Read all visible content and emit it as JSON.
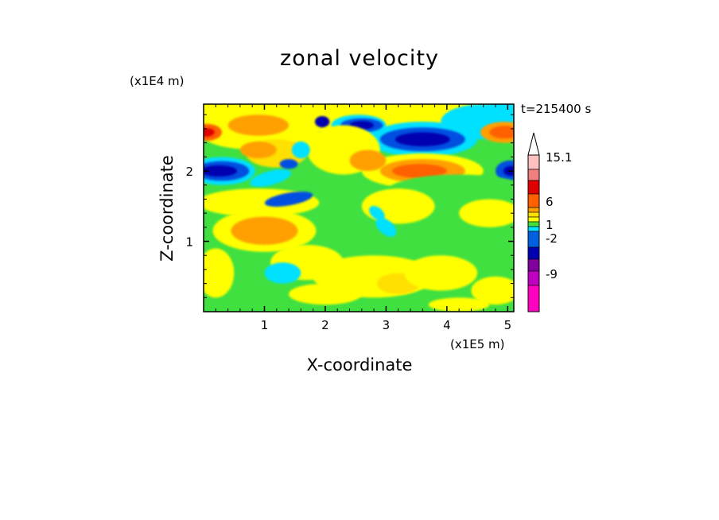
{
  "chart_data": {
    "type": "heatmap",
    "title": "zonal velocity",
    "xlabel": "X-coordinate",
    "ylabel": "Z-coordinate",
    "x_unit": "(x1E5 m)",
    "y_unit": "(x1E4 m)",
    "time_label": "t=215400 s",
    "xlim": [
      0,
      5.1
    ],
    "ylim": [
      0,
      2.95
    ],
    "x_ticks": [
      "1",
      "2",
      "3",
      "4",
      "5"
    ],
    "y_ticks": [
      "1",
      "2"
    ],
    "colorbar": {
      "tick_labels": [
        "15.1",
        "6",
        "1",
        "-2",
        "-9"
      ],
      "colors": [
        "#ffc0c0",
        "#f08080",
        "#e00000",
        "#ff6000",
        "#ffa000",
        "#ffe000",
        "#ffff00",
        "#40e040",
        "#00e0ff",
        "#0060e0",
        "#0000b0",
        "#8000a0",
        "#c000c0",
        "#ff00c0"
      ]
    },
    "palette": {
      "dark_blue": "#0000b0",
      "blue": "#0050e0",
      "cyan": "#00e0ff",
      "green": "#40e040",
      "yellow": "#ffff00",
      "yellow_orange": "#ffe000",
      "orange": "#ffa000",
      "dark_orange": "#ff6000",
      "red": "#e00000"
    }
  }
}
